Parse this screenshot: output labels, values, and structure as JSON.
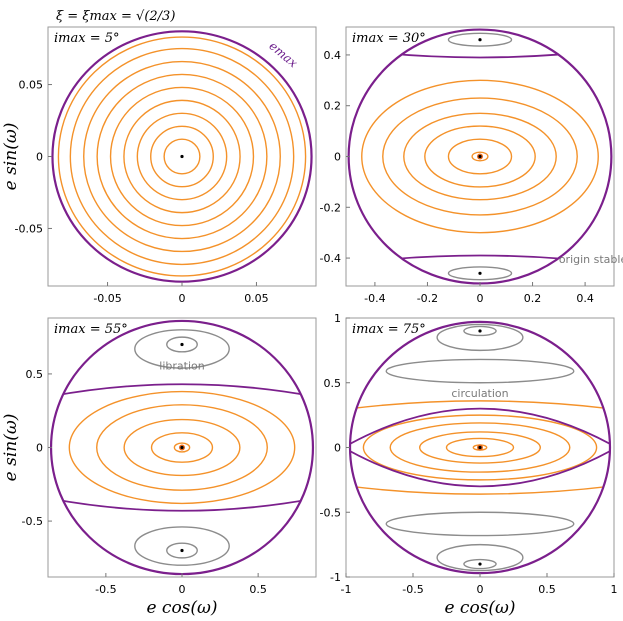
{
  "figure_title": "ξ = ξmax = √(2/3)",
  "colors": {
    "boundary": "#7b1f8c",
    "circulating": "#f4922a",
    "librating": "#8c8c8c",
    "fixed_point": "#000000",
    "origin_marker": "#e8691c"
  },
  "chart_data": [
    {
      "type": "line",
      "title": "imax = 5°",
      "ylabel": "e sin(ω)",
      "xlabel": "",
      "xlim": [
        -0.09,
        0.09
      ],
      "ylim": [
        -0.09,
        0.09
      ],
      "xticks": [
        -0.05,
        0,
        0.05
      ],
      "xticklabels": [
        "-0.05",
        "0",
        "0.05"
      ],
      "yticks": [
        -0.05,
        0,
        0.05
      ],
      "yticklabels": [
        "-0.05",
        "0",
        "0.05"
      ],
      "e_max": 0.087,
      "annotations": [
        "emax"
      ],
      "circulating_orbits": {
        "x_semi_axes": [
          0.012,
          0.021,
          0.03,
          0.039,
          0.048,
          0.057,
          0.066,
          0.075,
          0.083
        ],
        "y_semi_axes": [
          0.012,
          0.021,
          0.03,
          0.039,
          0.048,
          0.057,
          0.066,
          0.075,
          0.083
        ]
      },
      "librating_orbits": [],
      "fixed_points": [
        [
          0,
          0
        ]
      ]
    },
    {
      "type": "line",
      "title": "imax = 30°",
      "ylabel": "",
      "xlabel": "",
      "xlim": [
        -0.51,
        0.51
      ],
      "ylim": [
        -0.51,
        0.51
      ],
      "xticks": [
        -0.4,
        -0.2,
        0,
        0.2,
        0.4
      ],
      "xticklabels": [
        "-0.4",
        "-0.2",
        "0",
        "0.2",
        "0.4"
      ],
      "yticks": [
        -0.4,
        -0.2,
        0,
        0.2,
        0.4
      ],
      "yticklabels": [
        "-0.4",
        "-0.2",
        "0",
        "0.2",
        "0.4"
      ],
      "e_max": 0.5,
      "annotations": [
        "origin stable"
      ],
      "separatrix_y_at_x0": 0.39,
      "separatrix_y_at_edge": 0.425,
      "circulating_orbits": {
        "x_semi_axes": [
          0.03,
          0.12,
          0.21,
          0.29,
          0.37,
          0.45
        ],
        "y_semi_axes": [
          0.017,
          0.068,
          0.12,
          0.17,
          0.23,
          0.3
        ]
      },
      "librating_orbits": [
        {
          "cx": 0,
          "cy": 0.46,
          "rx": 0.12,
          "ry": 0.025
        },
        {
          "cx": 0,
          "cy": -0.46,
          "rx": 0.12,
          "ry": 0.025
        }
      ],
      "fixed_points": [
        [
          0,
          0
        ],
        [
          0,
          0.46
        ],
        [
          0,
          -0.46
        ]
      ]
    },
    {
      "type": "line",
      "title": "imax = 55°",
      "ylabel": "e sin(ω)",
      "xlabel": "e cos(ω)",
      "xlim": [
        -0.88,
        0.88
      ],
      "ylim": [
        -0.88,
        0.88
      ],
      "xticks": [
        -0.5,
        0,
        0.5
      ],
      "xticklabels": [
        "-0.5",
        "0",
        "0.5"
      ],
      "yticks": [
        -0.5,
        0,
        0.5
      ],
      "yticklabels": [
        "-0.5",
        "0",
        "0.5"
      ],
      "e_max": 0.86,
      "annotations": [
        "libration"
      ],
      "separatrix_y_at_x0": 0.43,
      "separatrix_y_at_edge": 0.34,
      "circulating_orbits": {
        "x_semi_axes": [
          0.05,
          0.2,
          0.38,
          0.56,
          0.74
        ],
        "y_semi_axes": [
          0.03,
          0.1,
          0.19,
          0.29,
          0.38
        ]
      },
      "librating_orbits": [
        {
          "cx": 0,
          "cy": 0.7,
          "rx": 0.1,
          "ry": 0.05
        },
        {
          "cx": 0,
          "cy": 0.67,
          "rx": 0.31,
          "ry": 0.13
        },
        {
          "cx": 0,
          "cy": -0.7,
          "rx": 0.1,
          "ry": 0.05
        },
        {
          "cx": 0,
          "cy": -0.67,
          "rx": 0.31,
          "ry": 0.13
        }
      ],
      "fixed_points": [
        [
          0,
          0
        ],
        [
          0,
          0.7
        ],
        [
          0,
          -0.7
        ]
      ]
    },
    {
      "type": "line",
      "title": "imax = 75°",
      "ylabel": "",
      "xlabel": "e cos(ω)",
      "xlim": [
        -1.0,
        1.0
      ],
      "ylim": [
        -1.0,
        1.0
      ],
      "xticks": [
        -1,
        -0.5,
        0,
        0.5,
        1
      ],
      "xticklabels": [
        "-1",
        "-0.5",
        "0",
        "0.5",
        "1"
      ],
      "yticks": [
        -1,
        -0.5,
        0,
        0.5,
        1
      ],
      "yticklabels": [
        "-1",
        "-0.5",
        "0",
        "0.5",
        "1"
      ],
      "e_max": 0.97,
      "annotations": [
        "circulation"
      ],
      "separatrix_y_at_x0": 0.3,
      "separatrix_y_at_edge": 0.0,
      "circulating_orbits": {
        "x_semi_axes": [
          0.05,
          0.25,
          0.45,
          0.67,
          0.87
        ],
        "y_semi_axes": [
          0.02,
          0.07,
          0.12,
          0.19,
          0.25
        ]
      },
      "open_circulating": [
        {
          "y0": 0.36,
          "y_edge": 0.3
        },
        {
          "y0": -0.36,
          "y_edge": -0.3
        }
      ],
      "librating_orbits": [
        {
          "cx": 0,
          "cy": 0.9,
          "rx": 0.12,
          "ry": 0.035
        },
        {
          "cx": 0,
          "cy": 0.85,
          "rx": 0.32,
          "ry": 0.1
        },
        {
          "cx": 0,
          "cy": -0.9,
          "rx": 0.12,
          "ry": 0.035
        },
        {
          "cx": 0,
          "cy": -0.85,
          "rx": 0.32,
          "ry": 0.1
        },
        {
          "cx": 0,
          "cy": 0.59,
          "rx": 0.7,
          "ry": 0.09
        },
        {
          "cx": 0,
          "cy": -0.59,
          "rx": 0.7,
          "ry": 0.09
        }
      ],
      "fixed_points": [
        [
          0,
          0
        ],
        [
          0,
          0.9
        ],
        [
          0,
          -0.9
        ]
      ]
    }
  ]
}
